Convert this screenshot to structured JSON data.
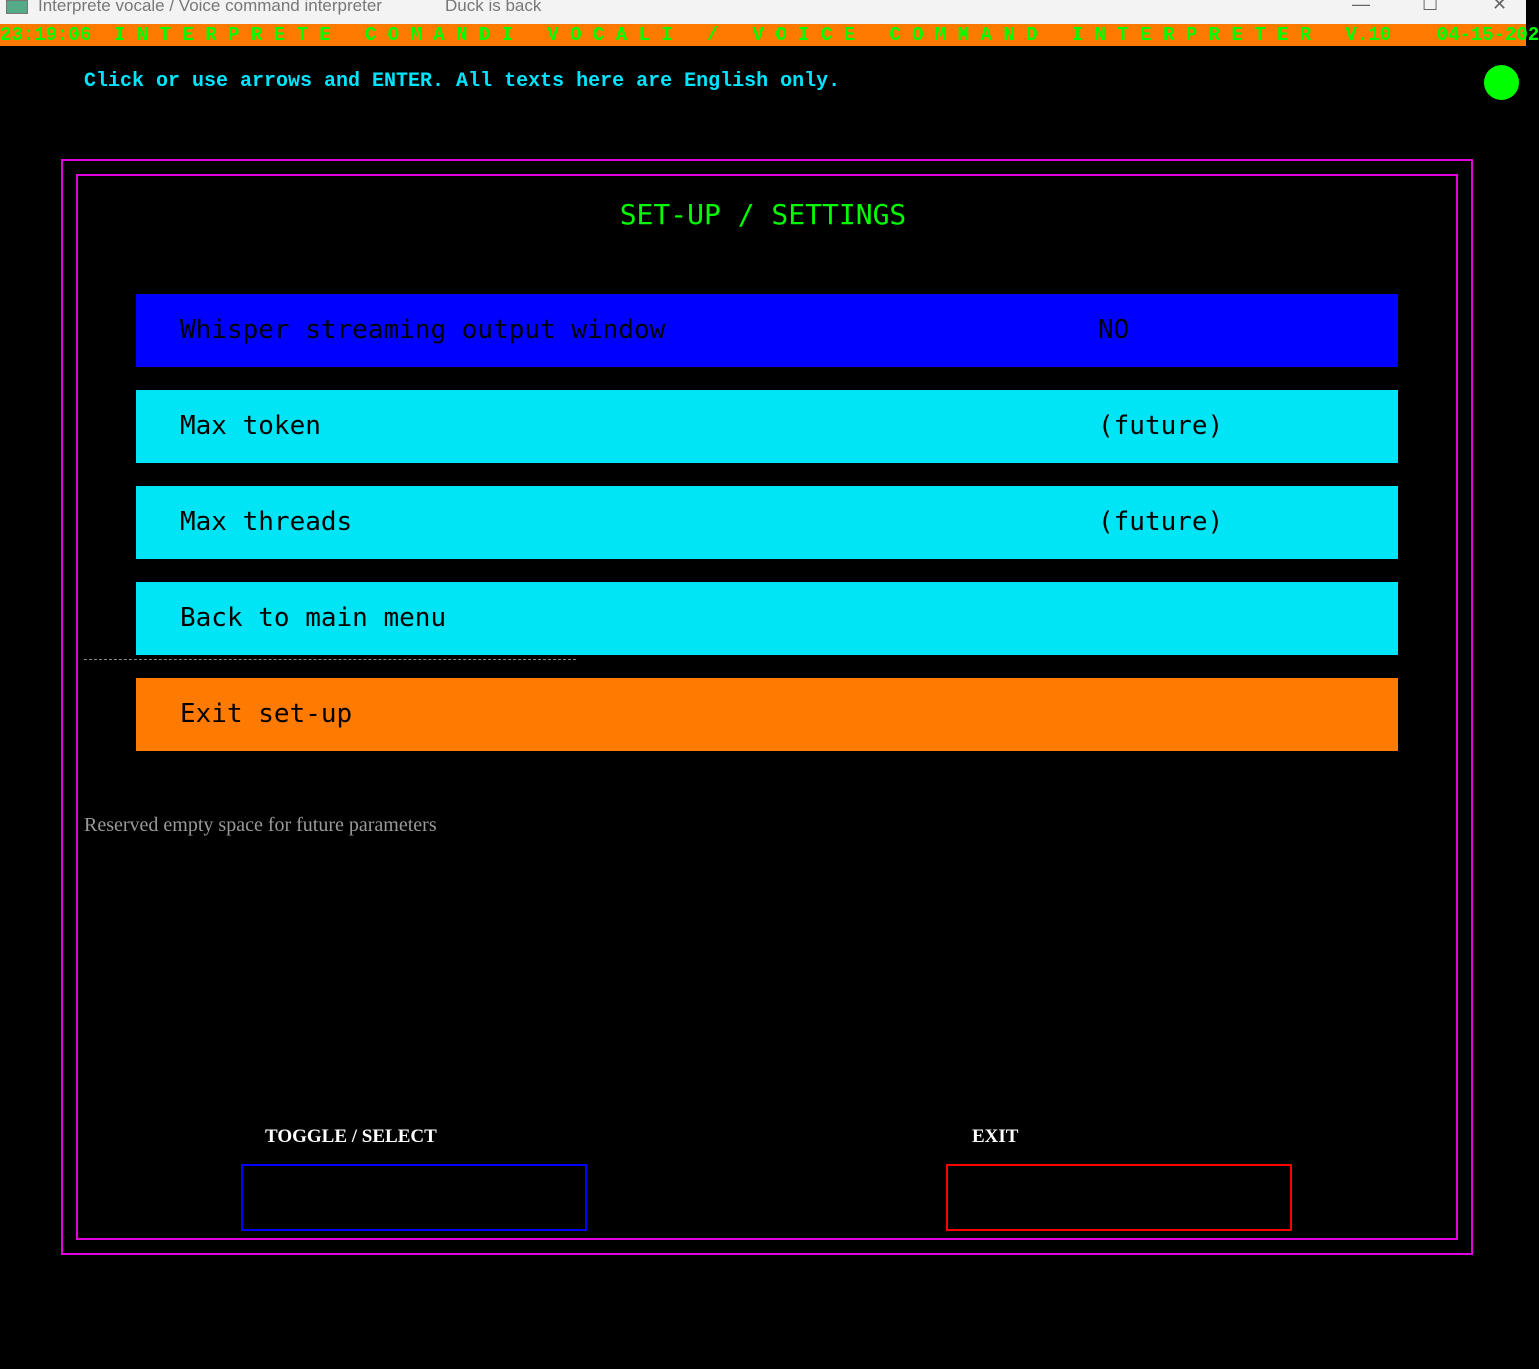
{
  "window": {
    "title": "Interprete vocale / Voice command interpreter",
    "subtitle": "Duck is back",
    "minimize": "—",
    "maximize": "☐",
    "close": "✕"
  },
  "status_bar": {
    "text": "23:19:06  I N T E R P R E T E   C O M A N D I   V O C A L I   /   V O I C E   C O M M A N D   I N T E R P R E T E R   V.10    04-15-202"
  },
  "hint": "Click or use arrows and ENTER. All texts here are English only.",
  "indicator_color": "#00ff00",
  "heading": "SET-UP / SETTINGS",
  "menu": [
    {
      "label": "Whisper streaming output window",
      "value": "NO",
      "selected": true
    },
    {
      "label": "Max token",
      "value": "(future)"
    },
    {
      "label": "Max threads",
      "value": "(future)"
    },
    {
      "label": "Back to main menu",
      "value": ""
    },
    {
      "label": "Exit set-up",
      "value": ""
    }
  ],
  "reserved": "Reserved empty space for future parameters",
  "buttons": {
    "toggle_label": "TOGGLE / SELECT",
    "exit_label": "EXIT"
  }
}
